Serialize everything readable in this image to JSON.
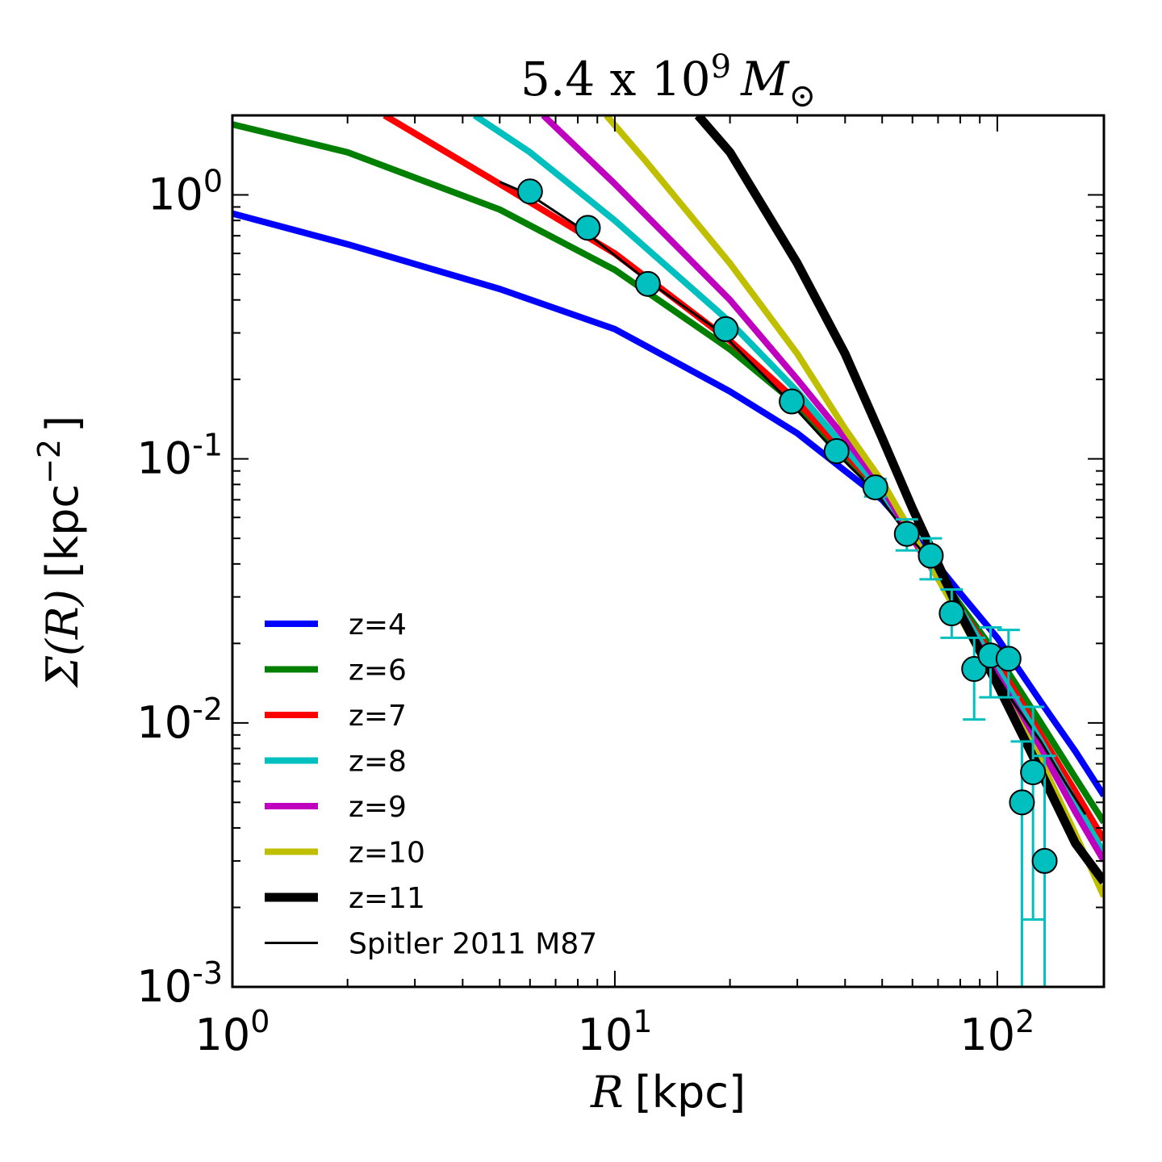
{
  "chart_data": {
    "type": "line",
    "title": {
      "value": "5.4 x 10",
      "exponent": "9",
      "symbol": "M",
      "subscript": "⊙"
    },
    "xlabel": {
      "symbol": "R",
      "unit": "[kpc]"
    },
    "ylabel": {
      "symbol": "Σ(R)",
      "unit_open": "[kpc",
      "unit_exp": "−2",
      "unit_close": "]"
    },
    "xscale": "log",
    "yscale": "log",
    "xlim": [
      1,
      190
    ],
    "ylim": [
      0.001,
      2.0
    ],
    "x_ticks": [
      {
        "value": 1,
        "base": "10",
        "exp": "0"
      },
      {
        "value": 10,
        "base": "10",
        "exp": "1"
      },
      {
        "value": 100,
        "base": "10",
        "exp": "2"
      }
    ],
    "y_ticks": [
      {
        "value": 1,
        "base": "10",
        "exp": "0"
      },
      {
        "value": 0.1,
        "base": "10",
        "exp": "-1"
      },
      {
        "value": 0.01,
        "base": "10",
        "exp": "-2"
      },
      {
        "value": 0.001,
        "base": "10",
        "exp": "-3"
      }
    ],
    "legend_position": "bottom-left",
    "series": [
      {
        "name": "z=4",
        "color": "#0000ff",
        "style": "thick",
        "points": [
          [
            1,
            0.85
          ],
          [
            2,
            0.65
          ],
          [
            5,
            0.44
          ],
          [
            10,
            0.31
          ],
          [
            20,
            0.18
          ],
          [
            30,
            0.125
          ],
          [
            40,
            0.09
          ],
          [
            50,
            0.07
          ],
          [
            60,
            0.052
          ],
          [
            80,
            0.031
          ],
          [
            100,
            0.021
          ],
          [
            130,
            0.012
          ],
          [
            160,
            0.0078
          ],
          [
            190,
            0.0053
          ]
        ]
      },
      {
        "name": "z=6",
        "color": "#007f00",
        "style": "thick",
        "points": [
          [
            1,
            1.85
          ],
          [
            2,
            1.45
          ],
          [
            5,
            0.88
          ],
          [
            10,
            0.52
          ],
          [
            20,
            0.26
          ],
          [
            30,
            0.16
          ],
          [
            40,
            0.1
          ],
          [
            50,
            0.075
          ],
          [
            60,
            0.05
          ],
          [
            80,
            0.028
          ],
          [
            100,
            0.018
          ],
          [
            130,
            0.01
          ],
          [
            160,
            0.0062
          ],
          [
            190,
            0.0042
          ]
        ]
      },
      {
        "name": "z=7",
        "color": "#ff0000",
        "style": "thick",
        "points": [
          [
            2.5,
            2.0
          ],
          [
            5,
            1.1
          ],
          [
            10,
            0.6
          ],
          [
            20,
            0.28
          ],
          [
            30,
            0.165
          ],
          [
            40,
            0.105
          ],
          [
            50,
            0.075
          ],
          [
            60,
            0.05
          ],
          [
            80,
            0.027
          ],
          [
            100,
            0.017
          ],
          [
            130,
            0.009
          ],
          [
            160,
            0.0055
          ],
          [
            190,
            0.0036
          ]
        ]
      },
      {
        "name": "z=8",
        "color": "#00bfbf",
        "style": "thick",
        "points": [
          [
            4.3,
            2.0
          ],
          [
            6,
            1.45
          ],
          [
            10,
            0.8
          ],
          [
            20,
            0.33
          ],
          [
            30,
            0.18
          ],
          [
            40,
            0.11
          ],
          [
            50,
            0.075
          ],
          [
            60,
            0.05
          ],
          [
            80,
            0.027
          ],
          [
            100,
            0.016
          ],
          [
            130,
            0.0085
          ],
          [
            160,
            0.005
          ],
          [
            190,
            0.0032
          ]
        ]
      },
      {
        "name": "z=9",
        "color": "#bf00bf",
        "style": "thick",
        "points": [
          [
            6.5,
            2.0
          ],
          [
            10,
            1.1
          ],
          [
            20,
            0.4
          ],
          [
            30,
            0.2
          ],
          [
            40,
            0.12
          ],
          [
            50,
            0.078
          ],
          [
            60,
            0.05
          ],
          [
            80,
            0.026
          ],
          [
            100,
            0.015
          ],
          [
            130,
            0.008
          ],
          [
            160,
            0.0046
          ],
          [
            190,
            0.003
          ]
        ]
      },
      {
        "name": "z=10",
        "color": "#bfbf00",
        "style": "thick",
        "points": [
          [
            9.5,
            2.0
          ],
          [
            12,
            1.35
          ],
          [
            20,
            0.55
          ],
          [
            30,
            0.25
          ],
          [
            40,
            0.13
          ],
          [
            50,
            0.082
          ],
          [
            60,
            0.052
          ],
          [
            80,
            0.025
          ],
          [
            100,
            0.014
          ],
          [
            130,
            0.0072
          ],
          [
            160,
            0.0038
          ],
          [
            190,
            0.0022
          ]
        ]
      },
      {
        "name": "z=11",
        "color": "#000000",
        "style": "heavy",
        "points": [
          [
            16.5,
            2.0
          ],
          [
            20,
            1.45
          ],
          [
            30,
            0.55
          ],
          [
            40,
            0.25
          ],
          [
            50,
            0.12
          ],
          [
            60,
            0.065
          ],
          [
            70,
            0.04
          ],
          [
            80,
            0.026
          ],
          [
            100,
            0.014
          ],
          [
            130,
            0.0065
          ],
          [
            160,
            0.0035
          ],
          [
            190,
            0.0025
          ]
        ]
      },
      {
        "name": "Spitler 2011 M87",
        "color": "#000000",
        "style": "thin",
        "points": [
          [
            5,
            1.12
          ],
          [
            6,
            1.0
          ],
          [
            8,
            0.76
          ],
          [
            12,
            0.48
          ],
          [
            19,
            0.3
          ],
          [
            28,
            0.17
          ],
          [
            38,
            0.105
          ],
          [
            48,
            0.075
          ],
          [
            58,
            0.052
          ],
          [
            68,
            0.04
          ],
          [
            78,
            0.027
          ],
          [
            90,
            0.019
          ],
          [
            110,
            0.012
          ],
          [
            130,
            0.0085
          ],
          [
            150,
            0.006
          ],
          [
            170,
            0.0045
          ]
        ]
      }
    ],
    "data_points": {
      "color": "#00bfbf",
      "points": [
        {
          "r": 6,
          "y": 1.03
        },
        {
          "r": 8.5,
          "y": 0.75
        },
        {
          "r": 12.2,
          "y": 0.46
        },
        {
          "r": 19.5,
          "y": 0.31
        },
        {
          "r": 29,
          "y": 0.165,
          "yerr": [
            0.158,
            0.172
          ]
        },
        {
          "r": 38,
          "y": 0.107,
          "yerr": [
            0.102,
            0.113
          ]
        },
        {
          "r": 48,
          "y": 0.078,
          "yerr": [
            0.072,
            0.084
          ]
        },
        {
          "r": 58,
          "y": 0.052,
          "yerr": [
            0.045,
            0.059
          ]
        },
        {
          "r": 67,
          "y": 0.043,
          "yerr": [
            0.035,
            0.05
          ]
        },
        {
          "r": 76,
          "y": 0.026,
          "yerr": [
            0.021,
            0.032
          ]
        },
        {
          "r": 87,
          "y": 0.016,
          "yerr": [
            0.0103,
            0.021
          ]
        },
        {
          "r": 96,
          "y": 0.018,
          "yerr": [
            0.0125,
            0.023
          ]
        },
        {
          "r": 107,
          "y": 0.0175,
          "yerr": [
            0.0125,
            0.0225
          ]
        },
        {
          "r": 116,
          "y": 0.005,
          "yerr": [
            0.001,
            0.0085
          ]
        },
        {
          "r": 124,
          "y": 0.0065,
          "yerr": [
            0.0018,
            0.0115
          ]
        },
        {
          "r": 133,
          "y": 0.003,
          "yerr": [
            0.001,
            0.0075
          ]
        }
      ]
    }
  }
}
